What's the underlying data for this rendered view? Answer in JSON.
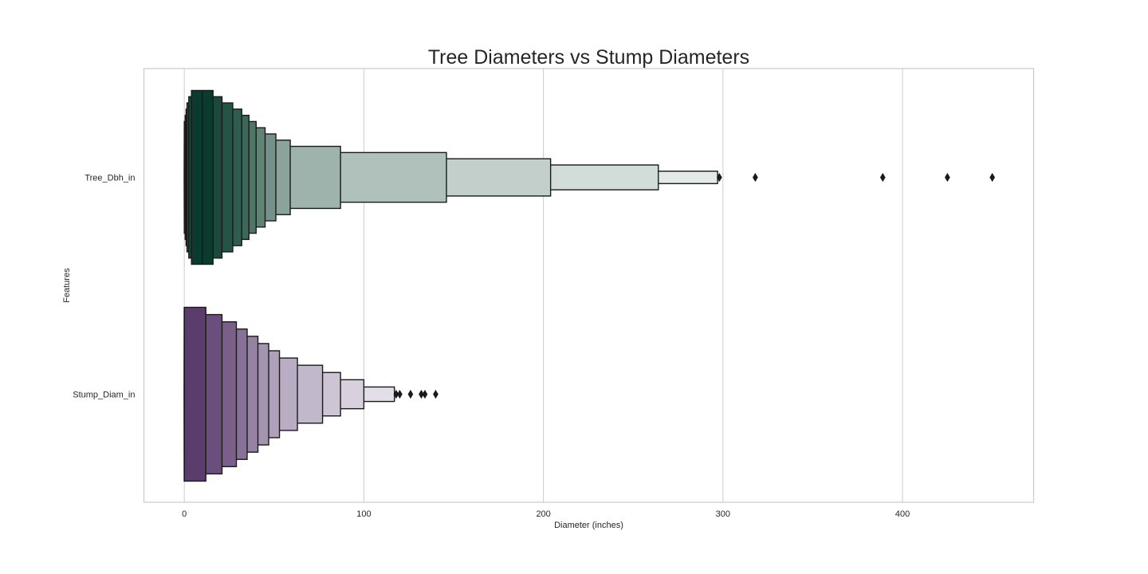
{
  "chart_data": {
    "type": "boxen",
    "orientation": "horizontal",
    "title": "Tree Diameters vs Stump Diameters",
    "xlabel": "Diameter (inches)",
    "ylabel": "Features",
    "xlim": [
      -22.5,
      473
    ],
    "xticks": [
      0,
      100,
      200,
      300,
      400
    ],
    "grid": "vertical",
    "categories": [
      "Tree_Dbh_in",
      "Stump_Diam_in"
    ],
    "series": [
      {
        "category": "Tree_Dbh_in",
        "boxes": [
          {
            "lo": 4,
            "hi": 16,
            "level": 1,
            "color": "#0a3b2f"
          },
          {
            "lo": 2.5,
            "hi": 21,
            "level": 2,
            "color": "#1b4a3d"
          },
          {
            "lo": 1.5,
            "hi": 27,
            "level": 3,
            "color": "#255446"
          },
          {
            "lo": 1,
            "hi": 32,
            "level": 4,
            "color": "#2f5c4f"
          },
          {
            "lo": 0.5,
            "hi": 36,
            "level": 5,
            "color": "#3d6759"
          },
          {
            "lo": 0,
            "hi": 40,
            "level": 6,
            "color": "#4f7567"
          },
          {
            "lo": 0,
            "hi": 45,
            "level": 7,
            "color": "#608375"
          },
          {
            "lo": 0,
            "hi": 51,
            "level": 8,
            "color": "#74928a"
          },
          {
            "lo": 0,
            "hi": 59,
            "level": 9,
            "color": "#8aa39b"
          },
          {
            "lo": 0,
            "hi": 87,
            "level": 10,
            "color": "#9fb3ad"
          },
          {
            "lo": 0,
            "hi": 146,
            "level": 11,
            "color": "#b0c1bc"
          },
          {
            "lo": 0,
            "hi": 204,
            "level": 12,
            "color": "#c2cfcb"
          },
          {
            "lo": 0,
            "hi": 264,
            "level": 13,
            "color": "#d2dcd9"
          },
          {
            "lo": 0,
            "hi": 297,
            "level": 14,
            "color": "#e2e9e7"
          }
        ],
        "median": 10,
        "outliers": [
          298,
          318,
          389,
          425,
          450
        ]
      },
      {
        "category": "Stump_Diam_in",
        "boxes": [
          {
            "lo": 0,
            "hi": 12,
            "level": 1,
            "color": "#5a3d6d"
          },
          {
            "lo": 0,
            "hi": 21,
            "level": 2,
            "color": "#6a4f7c"
          },
          {
            "lo": 0,
            "hi": 29,
            "level": 3,
            "color": "#7a6089"
          },
          {
            "lo": 0,
            "hi": 35,
            "level": 4,
            "color": "#887196"
          },
          {
            "lo": 0,
            "hi": 41,
            "level": 5,
            "color": "#9683a3"
          },
          {
            "lo": 0,
            "hi": 47,
            "level": 6,
            "color": "#a394af"
          },
          {
            "lo": 0,
            "hi": 53,
            "level": 7,
            "color": "#aea1b9"
          },
          {
            "lo": 0,
            "hi": 63,
            "level": 8,
            "color": "#b8adc3"
          },
          {
            "lo": 0,
            "hi": 77,
            "level": 9,
            "color": "#c2b8cb"
          },
          {
            "lo": 0,
            "hi": 87,
            "level": 10,
            "color": "#cdc4d4"
          },
          {
            "lo": 0,
            "hi": 100,
            "level": 11,
            "color": "#d8d0dd"
          },
          {
            "lo": 0,
            "hi": 117,
            "level": 12,
            "color": "#e4dee8"
          }
        ],
        "median": 0,
        "outliers": [
          118,
          120,
          126,
          132,
          134,
          140
        ]
      }
    ]
  }
}
